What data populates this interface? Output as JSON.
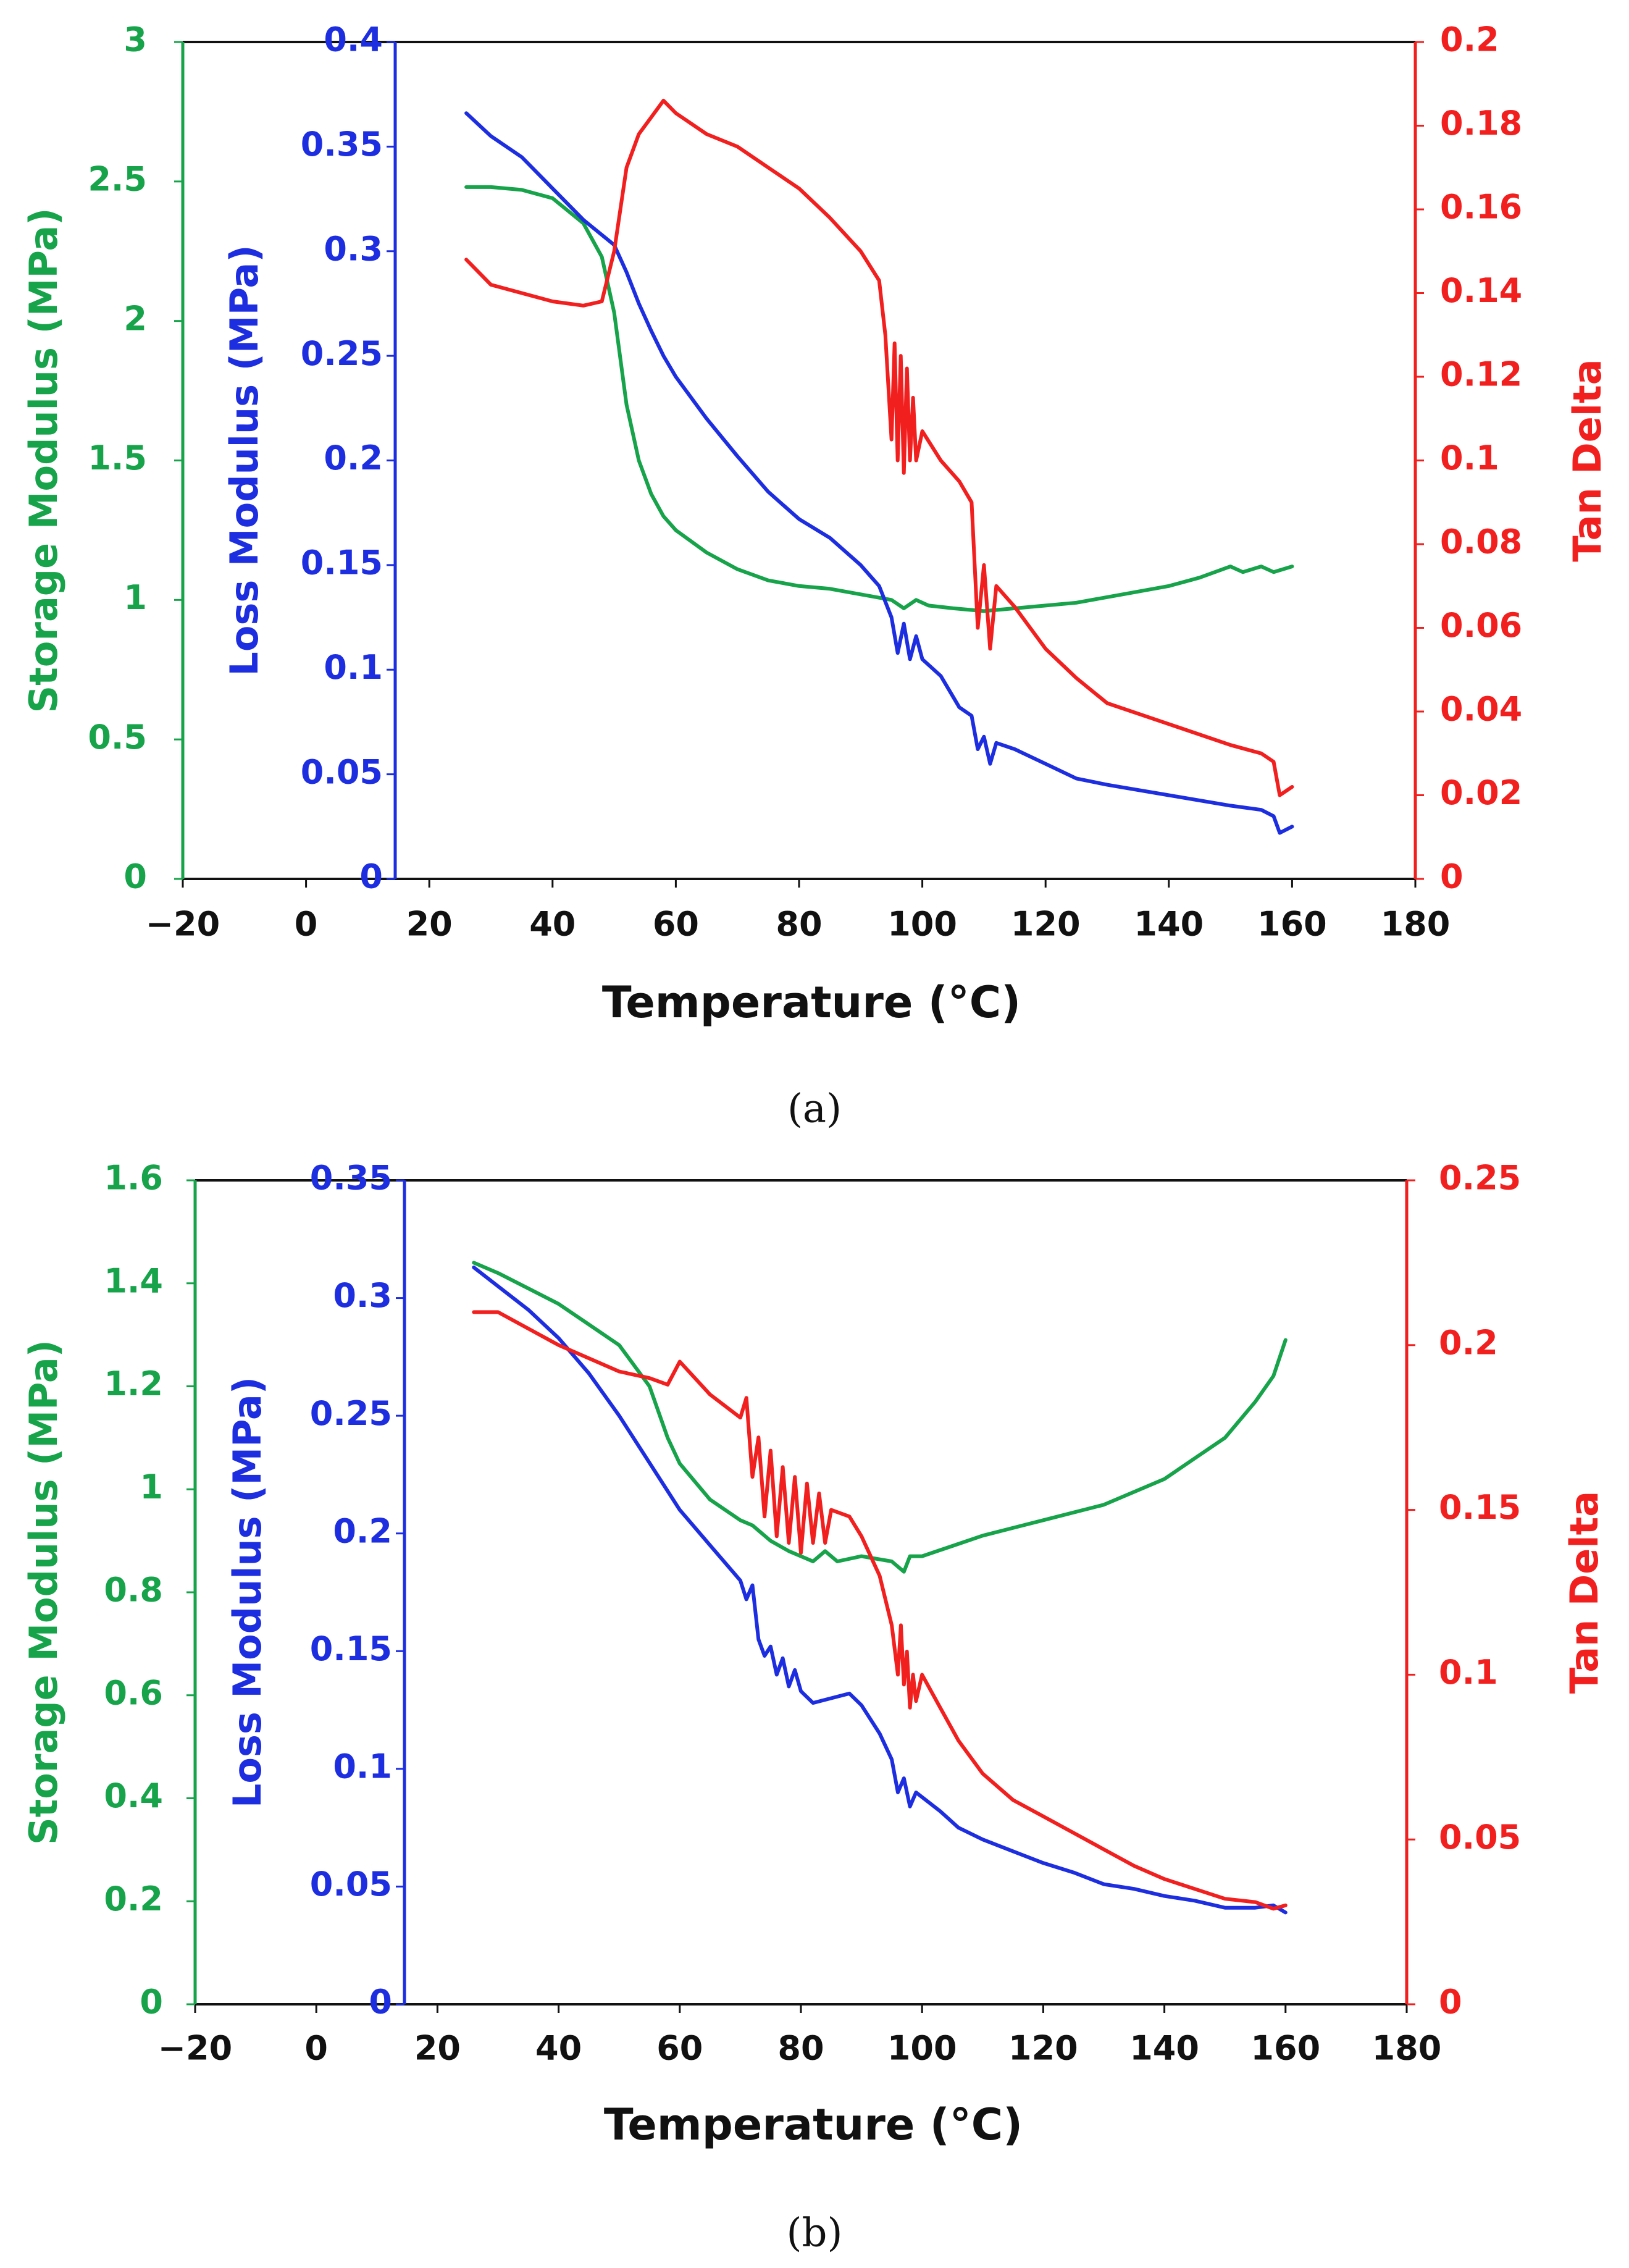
{
  "chart_data": [
    {
      "type": "line",
      "caption": "(a)",
      "xlabel": "Temperature (°C)",
      "xlim": [
        -20,
        180
      ],
      "xticks": [
        -20,
        0,
        20,
        40,
        60,
        80,
        100,
        120,
        140,
        160,
        180
      ],
      "axes": {
        "storage": {
          "label": "Storage Modulus (MPa)",
          "ylim": [
            0,
            3
          ],
          "ticks": [
            "0",
            "0.5",
            "1",
            "1.5",
            "2",
            "2.5",
            "3"
          ],
          "tick_values": [
            0,
            0.5,
            1,
            1.5,
            2,
            2.5,
            3
          ],
          "color": "#16a34a"
        },
        "loss": {
          "label": "Loss Modulus (MPa)",
          "ylim": [
            0,
            0.4
          ],
          "ticks": [
            "0",
            "0.05",
            "0.1",
            "0.15",
            "0.2",
            "0.25",
            "0.3",
            "0.35",
            "0.4"
          ],
          "tick_values": [
            0,
            0.05,
            0.1,
            0.15,
            0.2,
            0.25,
            0.3,
            0.35,
            0.4
          ],
          "color": "#1d2ee0"
        },
        "tan": {
          "label": "Tan Delta",
          "ylim": [
            0,
            0.2
          ],
          "ticks": [
            "0",
            "0.02",
            "0.04",
            "0.06",
            "0.08",
            "0.1",
            "0.12",
            "0.14",
            "0.16",
            "0.18",
            "0.2"
          ],
          "tick_values": [
            0,
            0.02,
            0.04,
            0.06,
            0.08,
            0.1,
            0.12,
            0.14,
            0.16,
            0.18,
            0.2
          ],
          "color": "#f21f1f"
        }
      },
      "series": [
        {
          "axis": "storage",
          "color": "#16a34a",
          "x": [
            26,
            30,
            35,
            40,
            45,
            48,
            50,
            52,
            54,
            56,
            58,
            60,
            65,
            70,
            75,
            80,
            85,
            90,
            95,
            97,
            99,
            101,
            105,
            110,
            115,
            120,
            125,
            130,
            135,
            140,
            145,
            150,
            152,
            155,
            157,
            160
          ],
          "y": [
            2.48,
            2.48,
            2.47,
            2.44,
            2.35,
            2.23,
            2.03,
            1.7,
            1.5,
            1.38,
            1.3,
            1.25,
            1.17,
            1.11,
            1.07,
            1.05,
            1.04,
            1.02,
            1.0,
            0.97,
            1.0,
            0.98,
            0.97,
            0.96,
            0.97,
            0.98,
            0.99,
            1.01,
            1.03,
            1.05,
            1.08,
            1.12,
            1.1,
            1.12,
            1.1,
            1.12
          ]
        },
        {
          "axis": "loss",
          "color": "#1d2ee0",
          "x": [
            26,
            30,
            35,
            40,
            45,
            50,
            52,
            54,
            56,
            58,
            60,
            65,
            70,
            75,
            80,
            85,
            90,
            93,
            95,
            96,
            97,
            98,
            99,
            100,
            103,
            106,
            108,
            109,
            110,
            111,
            112,
            115,
            120,
            125,
            130,
            140,
            150,
            155,
            157,
            158,
            160
          ],
          "y": [
            0.366,
            0.355,
            0.345,
            0.33,
            0.315,
            0.303,
            0.29,
            0.275,
            0.262,
            0.25,
            0.24,
            0.22,
            0.202,
            0.185,
            0.172,
            0.163,
            0.15,
            0.14,
            0.125,
            0.108,
            0.122,
            0.105,
            0.116,
            0.105,
            0.097,
            0.082,
            0.078,
            0.062,
            0.068,
            0.055,
            0.065,
            0.062,
            0.055,
            0.048,
            0.045,
            0.04,
            0.035,
            0.033,
            0.03,
            0.022,
            0.025
          ]
        },
        {
          "axis": "tan",
          "color": "#f21f1f",
          "x": [
            26,
            30,
            35,
            40,
            45,
            48,
            50,
            52,
            54,
            56,
            58,
            60,
            65,
            70,
            75,
            80,
            85,
            90,
            93,
            94,
            95,
            95.5,
            96,
            96.5,
            97,
            97.5,
            98,
            98.5,
            99,
            100,
            103,
            106,
            108,
            109,
            110,
            111,
            112,
            115,
            120,
            125,
            130,
            140,
            150,
            155,
            157,
            158,
            160
          ],
          "y": [
            0.148,
            0.142,
            0.14,
            0.138,
            0.137,
            0.138,
            0.15,
            0.17,
            0.178,
            0.182,
            0.186,
            0.183,
            0.178,
            0.175,
            0.17,
            0.165,
            0.158,
            0.15,
            0.143,
            0.13,
            0.105,
            0.128,
            0.1,
            0.125,
            0.097,
            0.122,
            0.1,
            0.115,
            0.1,
            0.107,
            0.1,
            0.095,
            0.09,
            0.06,
            0.075,
            0.055,
            0.07,
            0.065,
            0.055,
            0.048,
            0.042,
            0.037,
            0.032,
            0.03,
            0.028,
            0.02,
            0.022
          ]
        }
      ]
    },
    {
      "type": "line",
      "caption": "(b)",
      "xlabel": "Temperature (°C)",
      "xlim": [
        -20,
        180
      ],
      "xticks": [
        -20,
        0,
        20,
        40,
        60,
        80,
        100,
        120,
        140,
        160,
        180
      ],
      "axes": {
        "storage": {
          "label": "Storage Modulus (MPa)",
          "ylim": [
            0,
            1.6
          ],
          "ticks": [
            "0",
            "0.2",
            "0.4",
            "0.6",
            "0.8",
            "1",
            "1.2",
            "1.4",
            "1.6"
          ],
          "tick_values": [
            0,
            0.2,
            0.4,
            0.6,
            0.8,
            1,
            1.2,
            1.4,
            1.6
          ],
          "color": "#16a34a"
        },
        "loss": {
          "label": "Loss Modulus (MPa)",
          "ylim": [
            0,
            0.35
          ],
          "ticks": [
            "0",
            "0.05",
            "0.1",
            "0.15",
            "0.2",
            "0.25",
            "0.3",
            "0.35"
          ],
          "tick_values": [
            0,
            0.05,
            0.1,
            0.15,
            0.2,
            0.25,
            0.3,
            0.35
          ],
          "color": "#1d2ee0"
        },
        "tan": {
          "label": "Tan Delta",
          "ylim": [
            0,
            0.25
          ],
          "ticks": [
            "0",
            "0.05",
            "0.1",
            "0.15",
            "0.2",
            "0.25"
          ],
          "tick_values": [
            0,
            0.05,
            0.1,
            0.15,
            0.2,
            0.25
          ],
          "color": "#f21f1f"
        }
      },
      "series": [
        {
          "axis": "storage",
          "color": "#16a34a",
          "x": [
            26,
            30,
            35,
            40,
            45,
            50,
            55,
            58,
            60,
            65,
            70,
            72,
            73,
            75,
            78,
            80,
            82,
            84,
            86,
            90,
            95,
            97,
            98,
            100,
            105,
            110,
            120,
            130,
            140,
            145,
            150,
            155,
            158,
            160
          ],
          "y": [
            1.44,
            1.42,
            1.39,
            1.36,
            1.32,
            1.28,
            1.2,
            1.1,
            1.05,
            0.98,
            0.94,
            0.93,
            0.92,
            0.9,
            0.88,
            0.87,
            0.86,
            0.88,
            0.86,
            0.87,
            0.86,
            0.84,
            0.87,
            0.87,
            0.89,
            0.91,
            0.94,
            0.97,
            1.02,
            1.06,
            1.1,
            1.17,
            1.22,
            1.29
          ]
        },
        {
          "axis": "loss",
          "color": "#1d2ee0",
          "x": [
            26,
            30,
            35,
            40,
            45,
            50,
            55,
            60,
            65,
            70,
            71,
            72,
            73,
            74,
            75,
            76,
            77,
            78,
            79,
            80,
            82,
            85,
            88,
            90,
            93,
            95,
            96,
            97,
            98,
            99,
            100,
            103,
            106,
            110,
            115,
            120,
            125,
            130,
            135,
            140,
            145,
            150,
            155,
            158,
            160
          ],
          "y": [
            0.313,
            0.305,
            0.295,
            0.283,
            0.268,
            0.25,
            0.23,
            0.21,
            0.195,
            0.18,
            0.172,
            0.178,
            0.155,
            0.148,
            0.152,
            0.14,
            0.147,
            0.135,
            0.142,
            0.133,
            0.128,
            0.13,
            0.132,
            0.127,
            0.115,
            0.104,
            0.09,
            0.096,
            0.084,
            0.09,
            0.088,
            0.082,
            0.075,
            0.07,
            0.065,
            0.06,
            0.056,
            0.051,
            0.049,
            0.046,
            0.044,
            0.041,
            0.041,
            0.042,
            0.039
          ]
        },
        {
          "axis": "tan",
          "color": "#f21f1f",
          "x": [
            26,
            30,
            35,
            40,
            45,
            50,
            55,
            58,
            60,
            65,
            70,
            71,
            72,
            73,
            74,
            75,
            76,
            77,
            78,
            79,
            80,
            81,
            82,
            83,
            84,
            85,
            88,
            90,
            93,
            95,
            96,
            96.5,
            97,
            97.5,
            98,
            98.5,
            99,
            100,
            103,
            106,
            110,
            115,
            120,
            125,
            130,
            135,
            140,
            145,
            150,
            155,
            158,
            160
          ],
          "y": [
            0.21,
            0.21,
            0.205,
            0.2,
            0.196,
            0.192,
            0.19,
            0.188,
            0.195,
            0.185,
            0.178,
            0.184,
            0.16,
            0.172,
            0.148,
            0.168,
            0.142,
            0.163,
            0.14,
            0.16,
            0.137,
            0.158,
            0.14,
            0.155,
            0.14,
            0.15,
            0.148,
            0.142,
            0.13,
            0.115,
            0.1,
            0.115,
            0.097,
            0.107,
            0.09,
            0.1,
            0.092,
            0.1,
            0.09,
            0.08,
            0.07,
            0.062,
            0.057,
            0.052,
            0.047,
            0.042,
            0.038,
            0.035,
            0.032,
            0.031,
            0.029,
            0.03
          ]
        }
      ]
    }
  ]
}
